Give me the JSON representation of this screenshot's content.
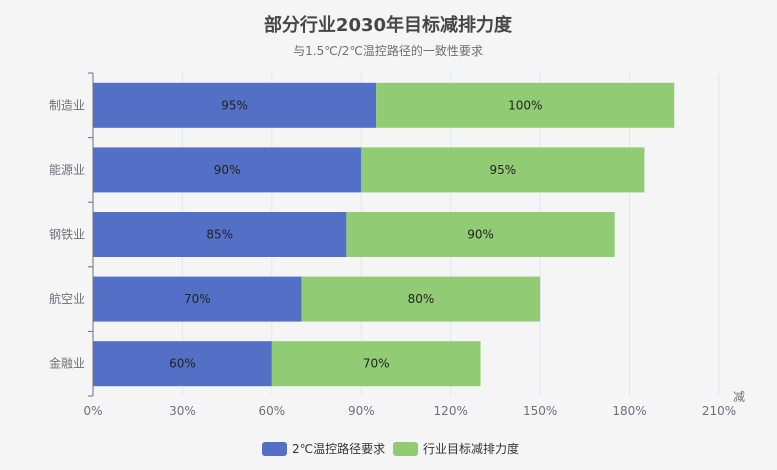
{
  "chart_data": {
    "type": "bar",
    "orientation": "horizontal",
    "stacked": true,
    "title": "部分行业2030年目标减排力度",
    "subtitle": "与1.5℃/2℃温控路径的一致性要求",
    "xlabel": "减",
    "ylabel": "",
    "categories": [
      "制造业",
      "能源业",
      "钢铁业",
      "航空业",
      "金融业"
    ],
    "series": [
      {
        "name": "2℃温控路径要求",
        "values": [
          95,
          90,
          85,
          70,
          60
        ],
        "labels": [
          "95%",
          "90%",
          "85%",
          "70%",
          "60%"
        ],
        "color": "#5470c6"
      },
      {
        "name": "行业目标减排力度",
        "values": [
          100,
          95,
          90,
          80,
          70
        ],
        "labels": [
          "100%",
          "95%",
          "90%",
          "80%",
          "70%"
        ],
        "color": "#91cc75"
      }
    ],
    "xlim": [
      0,
      210
    ],
    "xticks": [
      "0%",
      "30%",
      "60%",
      "90%",
      "120%",
      "150%",
      "180%",
      "210%"
    ],
    "grid": true,
    "legend_position": "bottom"
  }
}
